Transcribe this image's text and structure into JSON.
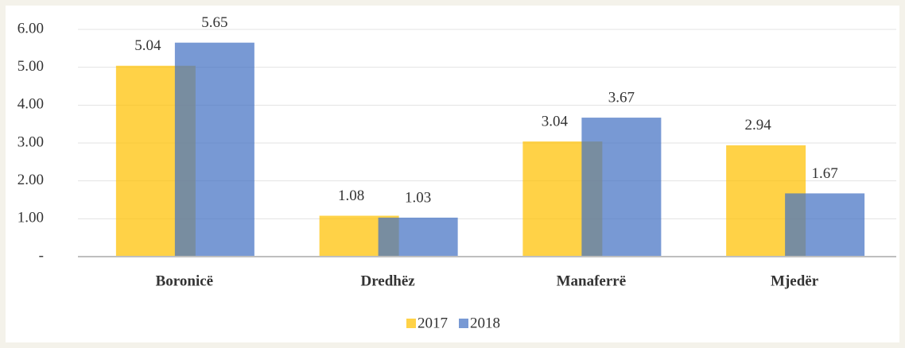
{
  "chart_data": {
    "type": "bar",
    "categories": [
      "Boronicë",
      "Dredhëz",
      "Manaferrë",
      "Mjedër"
    ],
    "series": [
      {
        "name": "2017",
        "color": "#ffc000",
        "values": [
          5.04,
          1.08,
          3.04,
          2.94
        ]
      },
      {
        "name": "2018",
        "color": "#4472c4",
        "values": [
          5.65,
          1.03,
          3.67,
          1.67
        ]
      }
    ],
    "ylim": [
      0,
      6
    ],
    "yticks": [
      {
        "value": 0,
        "label": "-"
      },
      {
        "value": 1,
        "label": "1.00"
      },
      {
        "value": 2,
        "label": "2.00"
      },
      {
        "value": 3,
        "label": "3.00"
      },
      {
        "value": 4,
        "label": "4.00"
      },
      {
        "value": 5,
        "label": "5.00"
      },
      {
        "value": 6,
        "label": "6.00"
      }
    ],
    "grid": true,
    "legend": "bottom"
  }
}
